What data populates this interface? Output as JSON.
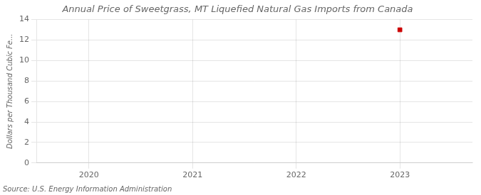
{
  "chart_data": {
    "type": "scatter",
    "title": "Annual Price of Sweetgrass, MT Liquefied Natural Gas Imports from Canada",
    "ylabel": "Dollars per Thousand Cubic Fe...",
    "annotation": "Source: U.S. Energy Information Administration",
    "x": [
      2023
    ],
    "values": [
      13.0
    ],
    "color": "#cc0000",
    "marker": "square",
    "xlim": [
      2019.5,
      2023.7
    ],
    "xticks": [
      2020,
      2021,
      2022,
      2023
    ],
    "ylim": [
      0,
      14
    ],
    "yticks": [
      0,
      2,
      4,
      6,
      8,
      10,
      12,
      14
    ],
    "grid": true
  }
}
